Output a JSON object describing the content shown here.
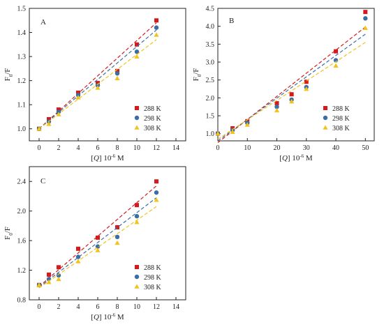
{
  "colors": {
    "s288": "#d7191c",
    "s298": "#3b6ea5",
    "s308": "#f2c31a"
  },
  "chart_data": [
    {
      "type": "scatter",
      "panel_label": "A",
      "xlabel_parts": [
        "[",
        "Q",
        "] 10",
        "-6",
        " M"
      ],
      "ylabel_parts": [
        "F",
        "0",
        "/F"
      ],
      "xlim": [
        -1,
        15
      ],
      "ylim": [
        0.95,
        1.5
      ],
      "xticks": [
        0,
        2,
        4,
        6,
        8,
        10,
        12,
        14
      ],
      "yticks": [
        1.0,
        1.1,
        1.2,
        1.3,
        1.4,
        1.5
      ],
      "ytick_labels": [
        "1.0",
        "1.1",
        "1.2",
        "1.3",
        "1.4",
        "1.5"
      ],
      "legend_position": "center-right",
      "series": [
        {
          "name": "288 K",
          "marker": "square",
          "x": [
            0,
            1,
            2,
            4,
            6,
            8,
            10,
            12
          ],
          "y": [
            1.0,
            1.04,
            1.08,
            1.15,
            1.19,
            1.24,
            1.35,
            1.45
          ],
          "fit": [
            [
              0,
              1.0
            ],
            [
              12,
              1.44
            ]
          ]
        },
        {
          "name": "298 K",
          "marker": "circle",
          "x": [
            0,
            1,
            2,
            4,
            6,
            8,
            10,
            12
          ],
          "y": [
            1.0,
            1.03,
            1.07,
            1.14,
            1.18,
            1.23,
            1.32,
            1.42
          ],
          "fit": [
            [
              0,
              1.0
            ],
            [
              12,
              1.41
            ]
          ]
        },
        {
          "name": "308 K",
          "marker": "triangle",
          "x": [
            0,
            1,
            2,
            4,
            6,
            8,
            10,
            12
          ],
          "y": [
            1.0,
            1.02,
            1.06,
            1.13,
            1.17,
            1.21,
            1.3,
            1.39
          ],
          "fit": [
            [
              0,
              1.0
            ],
            [
              12,
              1.37
            ]
          ]
        }
      ]
    },
    {
      "type": "scatter",
      "panel_label": "B",
      "xlabel_parts": [
        "[",
        "Q",
        "] 10",
        "-6",
        " M"
      ],
      "ylabel_parts": [
        "F",
        "0",
        "/F"
      ],
      "xlim": [
        0,
        53
      ],
      "ylim": [
        0.8,
        4.5
      ],
      "xticks": [
        0,
        10,
        20,
        30,
        40,
        50
      ],
      "yticks": [
        1.0,
        1.5,
        2.0,
        2.5,
        3.0,
        3.5,
        4.0,
        4.5
      ],
      "ytick_labels": [
        "1.0",
        "1.5",
        "2.0",
        "2.5",
        "3.0",
        "3.5",
        "4.0",
        "4.5"
      ],
      "legend_position": "center-right",
      "series": [
        {
          "name": "288 K",
          "marker": "square",
          "x": [
            0,
            5,
            10,
            20,
            25,
            30,
            40,
            50
          ],
          "y": [
            1.0,
            1.15,
            1.35,
            1.85,
            2.1,
            2.45,
            3.3,
            4.4
          ],
          "fit": [
            [
              0,
              0.75
            ],
            [
              50,
              3.98
            ]
          ]
        },
        {
          "name": "298 K",
          "marker": "circle",
          "x": [
            0,
            5,
            10,
            20,
            25,
            30,
            40,
            50
          ],
          "y": [
            1.0,
            1.1,
            1.3,
            1.75,
            1.95,
            2.3,
            3.05,
            4.22
          ],
          "fit": [
            [
              0,
              0.8
            ],
            [
              50,
              3.78
            ]
          ]
        },
        {
          "name": "308 K",
          "marker": "triangle",
          "x": [
            0,
            5,
            10,
            20,
            25,
            30,
            40,
            50
          ],
          "y": [
            1.0,
            1.05,
            1.25,
            1.65,
            1.9,
            2.25,
            2.9,
            3.95
          ],
          "fit": [
            [
              0,
              0.85
            ],
            [
              50,
              3.55
            ]
          ]
        }
      ]
    },
    {
      "type": "scatter",
      "panel_label": "C",
      "xlabel_parts": [
        "[",
        "Q",
        "] 10",
        "-6",
        " M"
      ],
      "ylabel_parts": [
        "F",
        "0",
        "/F"
      ],
      "xlim": [
        -1,
        15
      ],
      "ylim": [
        0.8,
        2.6
      ],
      "xticks": [
        0,
        2,
        4,
        6,
        8,
        10,
        12,
        14
      ],
      "yticks": [
        0.8,
        1.2,
        1.6,
        2.0,
        2.4
      ],
      "ytick_labels": [
        "0.8",
        "1.2",
        "1.6",
        "2.0",
        "2.4"
      ],
      "legend_position": "center-right",
      "series": [
        {
          "name": "288 K",
          "marker": "square",
          "x": [
            0,
            1,
            2,
            4,
            6,
            8,
            10,
            12
          ],
          "y": [
            1.0,
            1.14,
            1.24,
            1.49,
            1.64,
            1.78,
            2.08,
            2.4
          ],
          "fit": [
            [
              0,
              0.98
            ],
            [
              12,
              2.34
            ]
          ]
        },
        {
          "name": "298 K",
          "marker": "circle",
          "x": [
            0,
            1,
            2,
            4,
            6,
            8,
            10,
            12
          ],
          "y": [
            1.0,
            1.08,
            1.13,
            1.38,
            1.52,
            1.65,
            1.93,
            2.25
          ],
          "fit": [
            [
              0,
              0.97
            ],
            [
              12,
              2.18
            ]
          ]
        },
        {
          "name": "308 K",
          "marker": "triangle",
          "x": [
            0,
            1,
            2,
            4,
            6,
            8,
            10,
            12
          ],
          "y": [
            1.0,
            1.04,
            1.08,
            1.32,
            1.47,
            1.57,
            1.85,
            2.15
          ],
          "fit": [
            [
              0,
              0.96
            ],
            [
              12,
              2.06
            ]
          ]
        }
      ]
    }
  ]
}
